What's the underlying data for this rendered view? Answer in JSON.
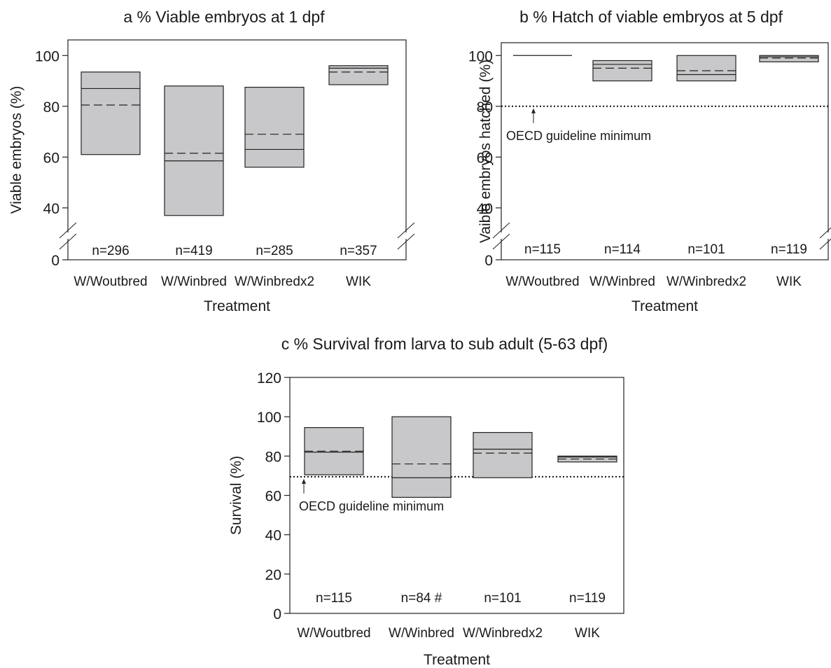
{
  "chart_data": [
    {
      "panel": "a",
      "type": "box",
      "title": "a  % Viable embryos at 1 dpf",
      "xlabel": "Treatment",
      "ylabel": "Viable embryos (%)",
      "categories": [
        "W/Woutbred",
        "W/Winbred",
        "W/Winbredx2",
        "WIK"
      ],
      "yticks": [
        "0",
        "40",
        "60",
        "80",
        "100"
      ],
      "ylim": [
        35,
        110
      ],
      "axis_break": true,
      "boxes": [
        {
          "low": 61,
          "high": 93.5,
          "median": 87,
          "mean": 80.5
        },
        {
          "low": 37,
          "high": 88,
          "median": 58.5,
          "mean": 61.5
        },
        {
          "low": 56,
          "high": 87.5,
          "median": 63,
          "mean": 69
        },
        {
          "low": 88.5,
          "high": 96,
          "median": 95,
          "mean": 93.5
        }
      ],
      "n_labels": [
        "n=296",
        "n=419",
        "n=285",
        "n=357"
      ]
    },
    {
      "panel": "b",
      "type": "box",
      "title": "b  % Hatch of viable embryos at 5 dpf",
      "xlabel": "Treatment",
      "ylabel": "Vaible embryos hatched (%)",
      "categories": [
        "W/Woutbred",
        "W/Winbred",
        "W/Winbredx2",
        "WIK"
      ],
      "yticks": [
        "0",
        "40",
        "60",
        "80",
        "100"
      ],
      "ylim": [
        35,
        110
      ],
      "axis_break": true,
      "boxes": [
        {
          "low": 100,
          "high": 100,
          "median": 100,
          "mean": 100
        },
        {
          "low": 90,
          "high": 98,
          "median": 96.5,
          "mean": 95
        },
        {
          "low": 90,
          "high": 100,
          "median": 92.5,
          "mean": 94
        },
        {
          "low": 97.5,
          "high": 100,
          "median": 99.5,
          "mean": 99
        }
      ],
      "reference_line": {
        "y": 80,
        "label": "OECD guideline minimum"
      },
      "n_labels": [
        "n=115",
        "n=114",
        "n=101",
        "n=119"
      ]
    },
    {
      "panel": "c",
      "type": "box",
      "title": "c % Survival from larva to sub adult (5-63 dpf)",
      "xlabel": "Treatment",
      "ylabel": "Survival (%)",
      "categories": [
        "W/Woutbred",
        "W/Winbred",
        "W/Winbredx2",
        "WIK"
      ],
      "yticks": [
        "0",
        "20",
        "40",
        "60",
        "80",
        "100",
        "120"
      ],
      "ylim": [
        0,
        120
      ],
      "axis_break": false,
      "boxes": [
        {
          "low": 70.5,
          "high": 94.5,
          "median": 82,
          "mean": 82.5
        },
        {
          "low": 59,
          "high": 100,
          "median": 69,
          "mean": 76
        },
        {
          "low": 69,
          "high": 92,
          "median": 83.5,
          "mean": 81.5
        },
        {
          "low": 77,
          "high": 80,
          "median": 79.5,
          "mean": 78.5
        }
      ],
      "reference_line": {
        "y": 69.5,
        "label": "OECD guideline minimum"
      },
      "n_labels": [
        "n=115",
        "n=84 #",
        "n=101",
        "n=119"
      ]
    }
  ]
}
